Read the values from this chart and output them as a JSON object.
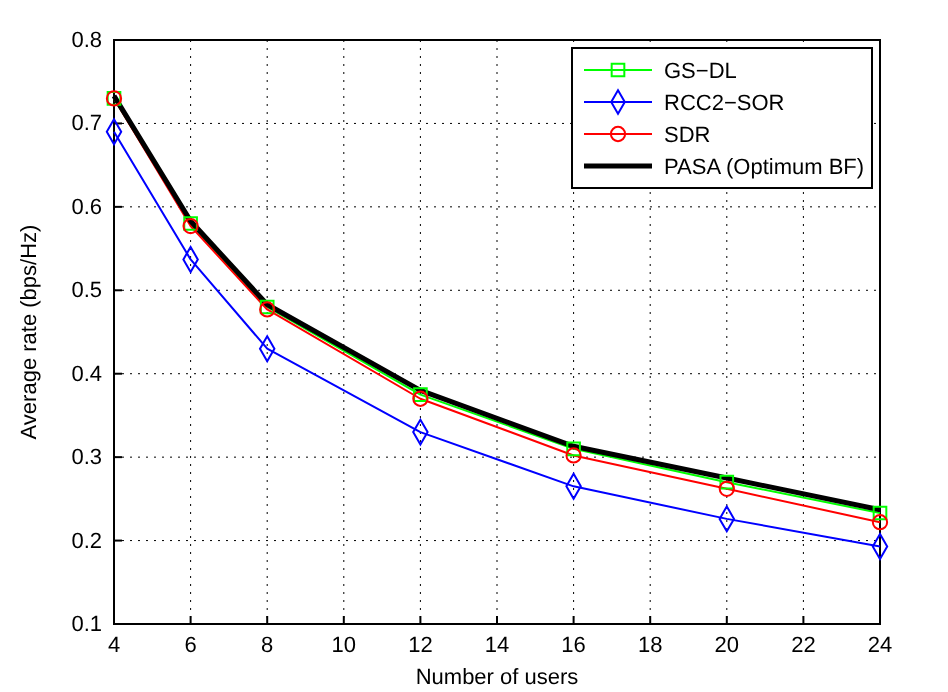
{
  "chart_data": {
    "type": "line",
    "xlabel": "Number of users",
    "ylabel": "Average rate (bps/Hz)",
    "x": [
      4,
      6,
      8,
      12,
      16,
      20,
      24
    ],
    "series": [
      {
        "name": "GS−DL",
        "color": "#00ff00",
        "marker": "square",
        "values": [
          0.73,
          0.58,
          0.48,
          0.375,
          0.31,
          0.27,
          0.233
        ]
      },
      {
        "name": "RCC2−SOR",
        "color": "#0000ff",
        "marker": "diamond",
        "values": [
          0.69,
          0.537,
          0.43,
          0.33,
          0.265,
          0.226,
          0.193
        ]
      },
      {
        "name": "SDR",
        "color": "#ff0000",
        "marker": "circle",
        "values": [
          0.73,
          0.577,
          0.477,
          0.37,
          0.302,
          0.262,
          0.222
        ]
      },
      {
        "name": "PASA (Optimum BF)",
        "color": "#000000",
        "marker": "none",
        "values": [
          0.733,
          0.583,
          0.483,
          0.38,
          0.313,
          0.275,
          0.237
        ]
      }
    ],
    "xlim": [
      4,
      24
    ],
    "xticks": [
      4,
      6,
      8,
      10,
      12,
      14,
      16,
      18,
      20,
      22,
      24
    ],
    "ylim": [
      0.1,
      0.8
    ],
    "yticks": [
      0.1,
      0.2,
      0.3,
      0.4,
      0.5,
      0.6,
      0.7,
      0.8
    ],
    "grid": true,
    "legend": "top right",
    "line_style": "solid"
  }
}
